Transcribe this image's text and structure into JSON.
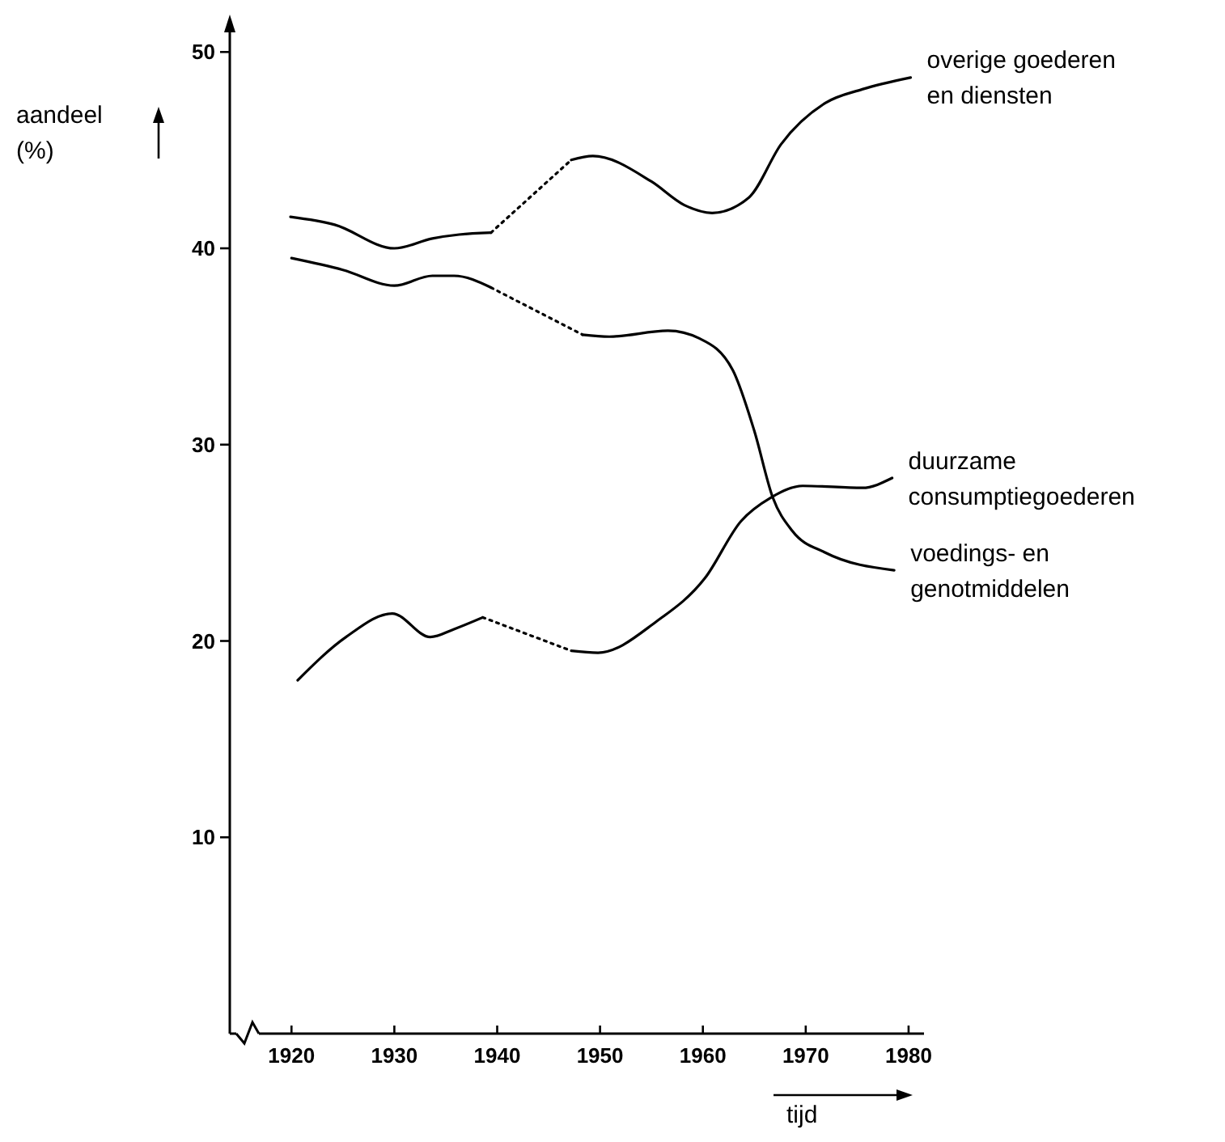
{
  "chart_data": {
    "type": "line",
    "xlabel": "tijd",
    "ylabel": "aandeel\n(%)",
    "xlim": [
      1914,
      1981.5
    ],
    "ylim": [
      0,
      51
    ],
    "xticks": [
      1920,
      1930,
      1940,
      1950,
      1960,
      1970,
      1980
    ],
    "yticks": [
      10,
      20,
      30,
      40,
      50
    ],
    "series": [
      {
        "color": "#000000",
        "line_style": "solid",
        "x": [
          1919.9,
          1924.2,
          1930,
          1933.7,
          1936.3,
          1939.4
        ],
        "values": [
          41.6,
          41.2,
          40.0,
          40.5,
          40.7,
          40.8
        ]
      },
      {
        "color": "#000000",
        "line_style": "dotted",
        "x": [
          1939.4,
          1947.2
        ],
        "values": [
          40.8,
          44.5
        ]
      },
      {
        "name": "overige goederen\nen diensten",
        "color": "#000000",
        "line_style": "solid",
        "x": [
          1947.2,
          1949.3,
          1955,
          1958.2,
          1960.9,
          1964.5,
          1967.6,
          1971.9,
          1975.5,
          1980.2
        ],
        "values": [
          44.5,
          44.7,
          43.4,
          42.2,
          41.8,
          42.6,
          45.3,
          47.4,
          48.1,
          48.7
        ]
      },
      {
        "color": "#000000",
        "line_style": "solid",
        "x": [
          1920,
          1925,
          1930,
          1933.7,
          1935.8,
          1939.4
        ],
        "values": [
          39.5,
          38.9,
          38.1,
          38.6,
          38.6,
          38.0
        ]
      },
      {
        "color": "#000000",
        "line_style": "dotted",
        "x": [
          1939.4,
          1948.3
        ],
        "values": [
          38.0,
          35.6
        ]
      },
      {
        "name": "voedings- en\ngenotmiddelen",
        "color": "#000000",
        "line_style": "solid",
        "x": [
          1948.3,
          1950.9,
          1956.6,
          1959.7,
          1962.9,
          1965,
          1966.8,
          1968.7,
          1971.9,
          1978.6
        ],
        "values": [
          35.6,
          35.5,
          35.8,
          35.4,
          33.8,
          30.7,
          27.3,
          25.6,
          24.5,
          23.6
        ]
      },
      {
        "color": "#000000",
        "line_style": "solid",
        "x": [
          1920.6,
          1925.3,
          1929.8,
          1933.5,
          1935.8,
          1938.6
        ],
        "values": [
          18.0,
          20.2,
          21.4,
          20.2,
          20.6,
          21.2
        ]
      },
      {
        "color": "#000000",
        "line_style": "dotted",
        "x": [
          1938.6,
          1947.2
        ],
        "values": [
          21.2,
          19.5
        ]
      },
      {
        "name": "duurzame\nconsumptiegoederen",
        "color": "#000000",
        "line_style": "solid",
        "x": [
          1947.2,
          1949.8,
          1955.5,
          1960.2,
          1963.7,
          1966.6,
          1969.7,
          1975.5,
          1978.4
        ],
        "values": [
          19.5,
          19.4,
          21.0,
          23.2,
          26.1,
          27.3,
          27.9,
          27.8,
          28.3
        ]
      }
    ]
  }
}
